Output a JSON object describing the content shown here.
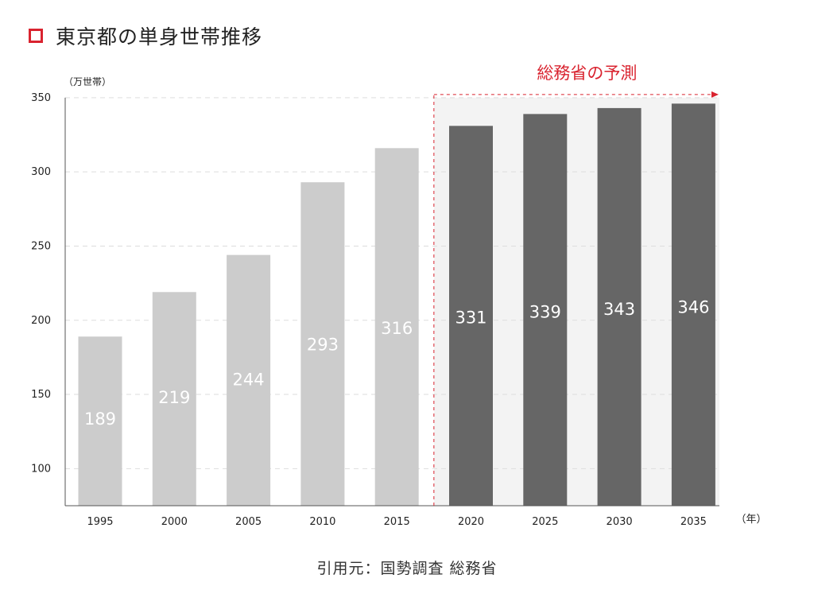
{
  "header": {
    "title": "東京都の単身世帯推移"
  },
  "source_text": "引用元：国勢調査 総務省",
  "chart_data": {
    "type": "bar",
    "title": "東京都の単身世帯推移",
    "ylabel": "（万世帯）",
    "xlabel": "（年）",
    "ylim": [
      75,
      350
    ],
    "yticks": [
      100,
      150,
      200,
      250,
      300,
      350
    ],
    "grid": true,
    "categories": [
      "1995",
      "2000",
      "2005",
      "2010",
      "2015",
      "2020",
      "2025",
      "2030",
      "2035"
    ],
    "values": [
      189,
      219,
      244,
      293,
      316,
      331,
      339,
      343,
      346
    ],
    "labels": [
      "189",
      "219",
      "244",
      "293",
      "316",
      "331",
      "339",
      "343",
      "346"
    ],
    "forecast_label": "総務省の予測",
    "forecast_start_index": 5,
    "colors": {
      "actual": "#cccccc",
      "forecast": "#666666",
      "forecast_bg": "#f3f3f3",
      "accent": "#d9232f"
    }
  }
}
